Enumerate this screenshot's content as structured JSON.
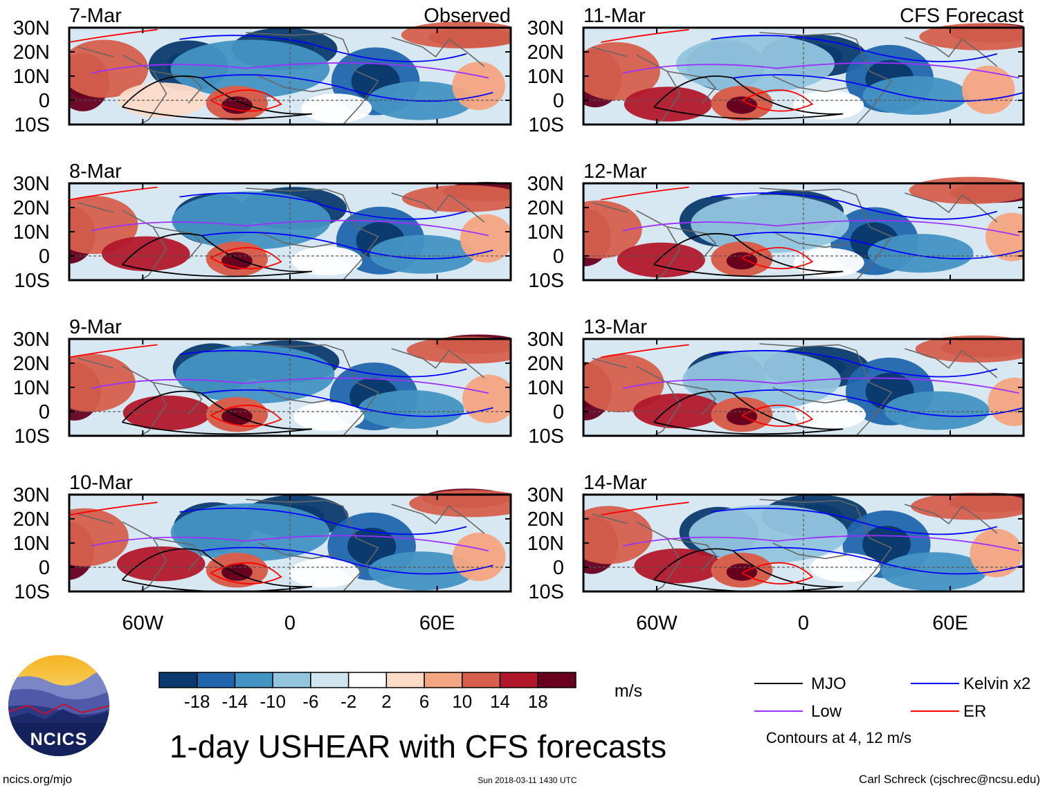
{
  "chart_data": {
    "type": "heatmap",
    "title": "1-day USHEAR with CFS forecasts",
    "units": "m/s",
    "source_observed": "Observed",
    "source_forecast": "CFS Forecast",
    "lon_ticks": [
      "60W",
      "0",
      "60E"
    ],
    "lon_tick_values": [
      -60,
      0,
      60
    ],
    "lat_ticks": [
      "30N",
      "20N",
      "10N",
      "0",
      "10S"
    ],
    "lat_tick_values": [
      30,
      20,
      10,
      0,
      -10
    ],
    "lon_range": [
      -90,
      90
    ],
    "lat_range": [
      -10,
      30
    ],
    "colorbar": {
      "labels": [
        "-18",
        "-14",
        "-10",
        "-6",
        "-2",
        "2",
        "6",
        "10",
        "14",
        "18"
      ],
      "colors": [
        "#0b3b6e",
        "#2166ac",
        "#4393c3",
        "#92c5de",
        "#d1e5f0",
        "#ffffff",
        "#fddbc7",
        "#f4a582",
        "#d6604d",
        "#b2182b",
        "#67001f"
      ]
    },
    "legend": [
      {
        "label": "MJO",
        "color": "#000000"
      },
      {
        "label": "Kelvin x2",
        "color": "#0000ff"
      },
      {
        "label": "Low",
        "color": "#9b30ff"
      },
      {
        "label": "ER",
        "color": "#ff0000"
      }
    ],
    "contour_note": "Contours at 4, 12 m/s",
    "panels": [
      {
        "date": "7-Mar",
        "source": "Observed"
      },
      {
        "date": "8-Mar",
        "source": "Observed"
      },
      {
        "date": "9-Mar",
        "source": "Observed"
      },
      {
        "date": "10-Mar",
        "source": "Observed"
      },
      {
        "date": "11-Mar",
        "source": "CFS Forecast"
      },
      {
        "date": "12-Mar",
        "source": "CFS Forecast"
      },
      {
        "date": "13-Mar",
        "source": "CFS Forecast"
      },
      {
        "date": "14-Mar",
        "source": "CFS Forecast"
      }
    ]
  },
  "footer": {
    "logo_text": "NCICS",
    "url": "ncics.org/mjo",
    "timestamp": "Sun 2018-03-11 1430 UTC",
    "credit": "Carl Schreck (cjschrec@ncsu.edu)"
  }
}
